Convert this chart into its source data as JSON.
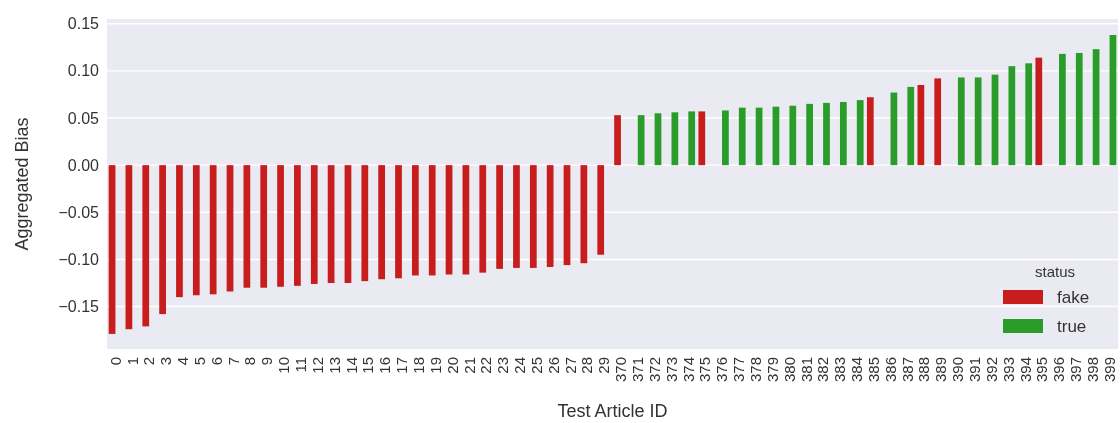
{
  "chart_data": {
    "type": "bar",
    "xlabel": "Test Article ID",
    "ylabel": "Aggregated Bias",
    "legend_title": "status",
    "legend": "bottom right",
    "grid": "y",
    "categories": [
      "0",
      "1",
      "2",
      "3",
      "4",
      "5",
      "6",
      "7",
      "8",
      "9",
      "10",
      "11",
      "12",
      "13",
      "14",
      "15",
      "16",
      "17",
      "18",
      "19",
      "20",
      "21",
      "22",
      "23",
      "24",
      "25",
      "26",
      "27",
      "28",
      "29",
      "370",
      "371",
      "372",
      "373",
      "374",
      "375",
      "376",
      "377",
      "378",
      "379",
      "380",
      "381",
      "382",
      "383",
      "384",
      "385",
      "386",
      "387",
      "388",
      "389",
      "390",
      "391",
      "392",
      "393",
      "394",
      "395",
      "396",
      "397",
      "398",
      "399"
    ],
    "ylim": [
      -0.195,
      0.155
    ],
    "yticks": [
      {
        "value": -0.15,
        "label": "−0.15"
      },
      {
        "value": -0.1,
        "label": "−0.10"
      },
      {
        "value": -0.05,
        "label": "−0.05"
      },
      {
        "value": 0,
        "label": "0.00"
      },
      0.05,
      {
        "value": 0.1,
        "label": "0.10"
      },
      0.15
    ],
    "series": [
      {
        "name": "fake",
        "color": "#c81d1d",
        "values": [
          -0.179,
          -0.174,
          -0.171,
          -0.158,
          -0.14,
          -0.138,
          -0.137,
          -0.134,
          -0.13,
          -0.13,
          -0.129,
          -0.128,
          -0.126,
          -0.125,
          -0.125,
          -0.123,
          -0.121,
          -0.12,
          -0.117,
          -0.117,
          -0.116,
          -0.116,
          -0.114,
          -0.11,
          -0.109,
          -0.109,
          -0.108,
          -0.106,
          -0.104,
          -0.095,
          0.053,
          null,
          null,
          null,
          null,
          0.057,
          null,
          null,
          null,
          null,
          null,
          null,
          null,
          null,
          null,
          0.072,
          null,
          null,
          0.085,
          0.092,
          null,
          null,
          null,
          null,
          null,
          0.114,
          null,
          null,
          null,
          null
        ]
      },
      {
        "name": "true",
        "color": "#2a9c2a",
        "values": [
          null,
          null,
          null,
          null,
          null,
          null,
          null,
          null,
          null,
          null,
          null,
          null,
          null,
          null,
          null,
          null,
          null,
          null,
          null,
          null,
          null,
          null,
          null,
          null,
          null,
          null,
          null,
          null,
          null,
          null,
          null,
          0.053,
          0.055,
          0.056,
          0.057,
          null,
          0.058,
          0.061,
          0.061,
          0.062,
          0.063,
          0.065,
          0.066,
          0.067,
          0.069,
          null,
          0.077,
          0.083,
          null,
          null,
          0.093,
          0.093,
          0.096,
          0.105,
          0.108,
          null,
          0.118,
          0.119,
          0.123,
          0.138
        ]
      }
    ]
  }
}
